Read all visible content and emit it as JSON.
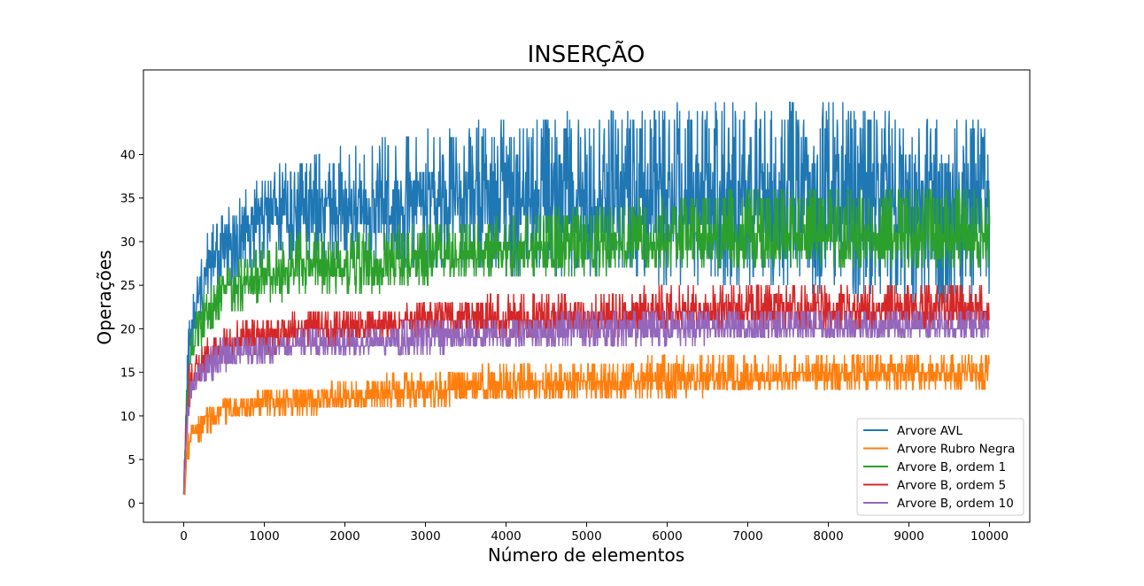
{
  "chart_data": {
    "type": "line",
    "title": "INSERÇÃO",
    "xlabel": "Número de elementos",
    "ylabel": "Operações",
    "xlim": [
      -500,
      10500
    ],
    "ylim": [
      -2.2,
      49.7
    ],
    "xticks": [
      0,
      1000,
      2000,
      3000,
      4000,
      5000,
      6000,
      7000,
      8000,
      9000,
      10000
    ],
    "yticks": [
      0,
      5,
      10,
      15,
      20,
      25,
      30,
      35,
      40
    ],
    "grid": false,
    "legend_position": "lower-right",
    "series": [
      {
        "name": "Arvore AVL",
        "color": "#1f77b4",
        "envelope": {
          "x": [
            0,
            50,
            100,
            200,
            300,
            500,
            700,
            1000,
            1500,
            2000,
            3000,
            4000,
            5000,
            6000,
            7000,
            8000,
            9000,
            10000
          ],
          "low": [
            1,
            12,
            17,
            21,
            23,
            25,
            26,
            27,
            28,
            28,
            27,
            26,
            26,
            25,
            25,
            24,
            22,
            22
          ],
          "high": [
            2,
            20,
            24,
            28,
            31,
            34,
            36,
            38,
            40,
            41,
            43,
            44,
            45,
            46,
            46,
            46,
            45,
            44
          ],
          "mid": [
            1,
            16,
            20,
            24,
            27,
            30,
            32,
            33,
            34,
            34,
            35,
            35,
            35,
            35,
            35,
            35,
            35,
            35
          ]
        }
      },
      {
        "name": "Arvore Rubro Negra",
        "color": "#ff7f0e",
        "envelope": {
          "x": [
            0,
            50,
            100,
            200,
            300,
            500,
            700,
            1000,
            1500,
            2000,
            3000,
            4000,
            5000,
            6000,
            7000,
            8000,
            9000,
            10000
          ],
          "low": [
            0,
            4,
            6,
            7,
            8,
            9,
            10,
            10,
            10,
            11,
            11,
            12,
            12,
            12,
            13,
            13,
            13,
            13
          ],
          "high": [
            1,
            8,
            9,
            10,
            11,
            12,
            12,
            13,
            13,
            14,
            15,
            16,
            16,
            17,
            17,
            17,
            17,
            17
          ],
          "mid": [
            0,
            6,
            8,
            9,
            10,
            11,
            11,
            12,
            12,
            12,
            13,
            13,
            14,
            14,
            14,
            15,
            15,
            15
          ]
        }
      },
      {
        "name": "Arvore B, ordem 1",
        "color": "#2ca02c",
        "envelope": {
          "x": [
            0,
            50,
            100,
            200,
            300,
            500,
            700,
            1000,
            1500,
            2000,
            3000,
            4000,
            5000,
            6000,
            7000,
            8000,
            9000,
            10000
          ],
          "low": [
            1,
            12,
            15,
            18,
            19,
            21,
            22,
            23,
            24,
            24,
            25,
            26,
            26,
            27,
            27,
            27,
            27,
            27
          ],
          "high": [
            2,
            17,
            20,
            23,
            25,
            27,
            28,
            30,
            31,
            31,
            32,
            33,
            34,
            35,
            36,
            36,
            36,
            36
          ],
          "mid": [
            1,
            14,
            17,
            20,
            22,
            24,
            25,
            26,
            27,
            27,
            28,
            29,
            29,
            30,
            30,
            30,
            30,
            30
          ]
        }
      },
      {
        "name": "Arvore B, ordem 5",
        "color": "#d62728",
        "envelope": {
          "x": [
            0,
            50,
            100,
            200,
            300,
            500,
            700,
            1000,
            1500,
            2000,
            3000,
            4000,
            5000,
            6000,
            7000,
            8000,
            9000,
            10000
          ],
          "low": [
            1,
            10,
            12,
            14,
            15,
            16,
            17,
            17,
            18,
            18,
            19,
            19,
            19,
            20,
            20,
            20,
            20,
            20
          ],
          "high": [
            2,
            15,
            17,
            18,
            19,
            20,
            21,
            21,
            22,
            22,
            23,
            24,
            24,
            25,
            25,
            25,
            25,
            25
          ],
          "mid": [
            1,
            12,
            14,
            16,
            17,
            18,
            19,
            19,
            20,
            20,
            21,
            21,
            21,
            22,
            22,
            22,
            22,
            22
          ]
        }
      },
      {
        "name": "Arvore B, ordem 10",
        "color": "#9467bd",
        "envelope": {
          "x": [
            0,
            50,
            100,
            200,
            300,
            500,
            700,
            1000,
            1500,
            2000,
            3000,
            4000,
            5000,
            6000,
            7000,
            8000,
            9000,
            10000
          ],
          "low": [
            1,
            9,
            11,
            13,
            14,
            15,
            16,
            16,
            17,
            17,
            17,
            18,
            18,
            18,
            19,
            19,
            19,
            19
          ],
          "high": [
            2,
            14,
            15,
            17,
            18,
            19,
            19,
            19,
            20,
            20,
            21,
            21,
            22,
            22,
            22,
            22,
            22,
            22
          ],
          "mid": [
            1,
            11,
            13,
            15,
            16,
            17,
            17,
            18,
            18,
            18,
            19,
            19,
            20,
            20,
            20,
            20,
            20,
            20
          ]
        }
      }
    ]
  }
}
